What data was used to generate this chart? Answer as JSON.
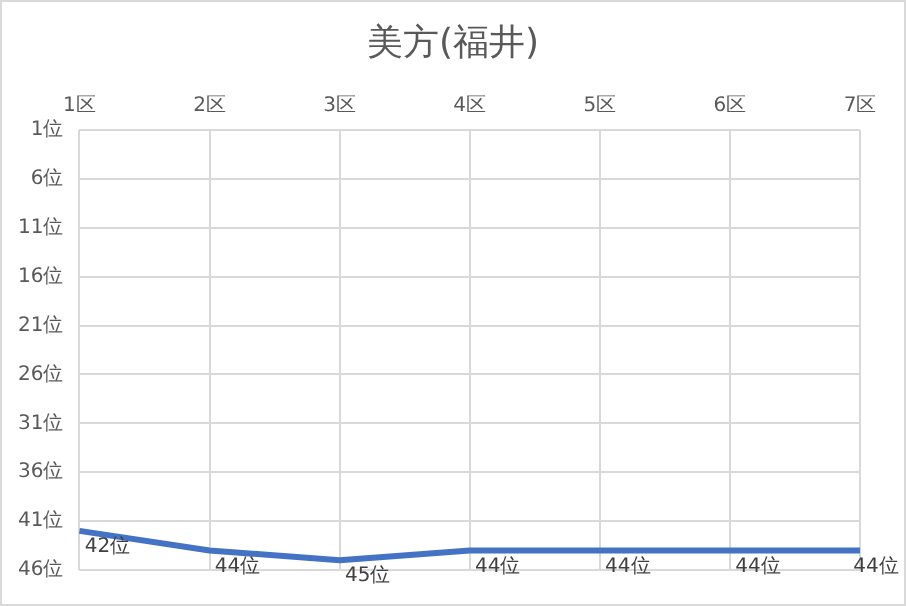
{
  "chart_data": {
    "type": "line",
    "title": "美方(福井)",
    "categories": [
      "1区",
      "2区",
      "3区",
      "4区",
      "5区",
      "6区",
      "7区"
    ],
    "series": [
      {
        "color": "#4472c4",
        "values": [
          42,
          44,
          45,
          44,
          44,
          44,
          44
        ],
        "value_labels": [
          "42位",
          "44位",
          "45位",
          "44位",
          "44位",
          "44位",
          "44位"
        ]
      }
    ],
    "ylim": [
      46,
      1
    ],
    "yticks": [
      {
        "value": 1,
        "label": "1位"
      },
      {
        "value": 6,
        "label": "6位"
      },
      {
        "value": 11,
        "label": "11位"
      },
      {
        "value": 16,
        "label": "16位"
      },
      {
        "value": 21,
        "label": "21位"
      },
      {
        "value": 26,
        "label": "26位"
      },
      {
        "value": 31,
        "label": "31位"
      },
      {
        "value": 36,
        "label": "36位"
      },
      {
        "value": 41,
        "label": "41位"
      },
      {
        "value": 46,
        "label": "46位"
      }
    ],
    "grid": true,
    "legend": false,
    "marker": "none",
    "line_style": "solid"
  }
}
